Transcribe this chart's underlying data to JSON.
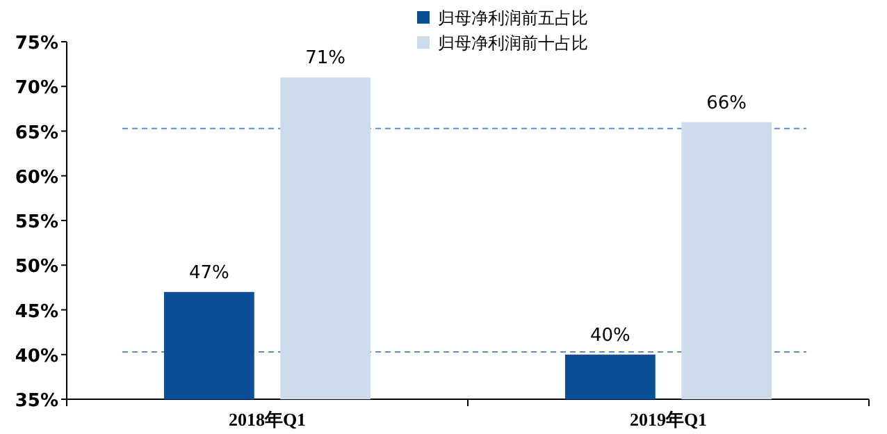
{
  "chart_data": {
    "type": "bar",
    "categories": [
      "2018年Q1",
      "2019年Q1"
    ],
    "series": [
      {
        "name": "归母净利润前五占比",
        "color": "#0b4f96",
        "values": [
          47,
          40
        ],
        "value_labels": [
          "47%",
          "40%"
        ]
      },
      {
        "name": "归母净利润前十占比",
        "color": "#cddcea",
        "values": [
          71,
          66
        ],
        "value_labels": [
          "71%",
          "66%"
        ]
      }
    ],
    "ylim": [
      35,
      75
    ],
    "yticks": [
      {
        "value": 35,
        "label": "35%"
      },
      {
        "value": 40,
        "label": "40%"
      },
      {
        "value": 45,
        "label": "45%"
      },
      {
        "value": 50,
        "label": "50%"
      },
      {
        "value": 55,
        "label": "55%"
      },
      {
        "value": 60,
        "label": "60%"
      },
      {
        "value": 65,
        "label": "65%"
      },
      {
        "value": 70,
        "label": "70%"
      },
      {
        "value": 75,
        "label": "75%"
      }
    ],
    "ref_lines": [
      {
        "axis": "y",
        "value": 65.3,
        "color": "#5b8ed0",
        "line_style": "dashed"
      },
      {
        "axis": "y",
        "value": 40.3,
        "color": "#5b8ed0",
        "line_style": "dashed"
      }
    ],
    "legend": "top"
  }
}
